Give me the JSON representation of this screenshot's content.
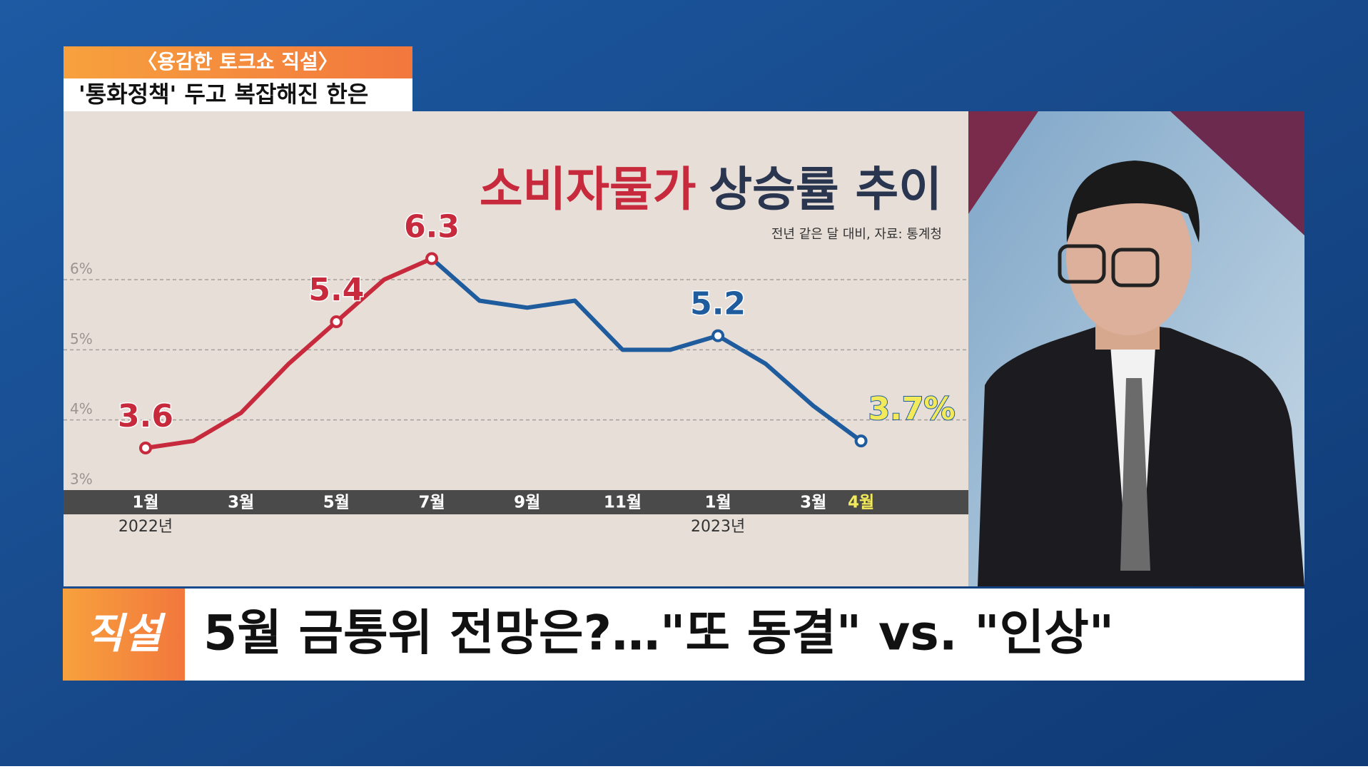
{
  "show": {
    "tag": "〈용감한 토크쇼 직설〉",
    "headline": "'통화정책' 두고 복잡해진 한은",
    "logo": "직설",
    "caption": "5월 금통위 전망은?…\"또 동결\" vs. \"인상\""
  },
  "chart_data": {
    "type": "line",
    "title": "소비자물가",
    "title_rest": "상승률 추이",
    "subtitle": "전년 같은 달 대비, 자료: 통계청",
    "categories": [
      "1월",
      null,
      "3월",
      null,
      "5월",
      null,
      "7월",
      null,
      "9월",
      null,
      "11월",
      null,
      "1월",
      null,
      "3월",
      "4월"
    ],
    "year_labels": [
      "2022년",
      null,
      null,
      null,
      null,
      null,
      null,
      null,
      null,
      null,
      null,
      null,
      "2023년",
      null,
      null,
      null
    ],
    "series": [
      {
        "color": "#c62a3c",
        "values": [
          3.6,
          3.7,
          4.1,
          4.8,
          5.4,
          6.0,
          6.3,
          null,
          null,
          null,
          null,
          null,
          null,
          null,
          null,
          null
        ],
        "value_labels": [
          "3.6",
          null,
          null,
          null,
          "5.4",
          null,
          "6.3",
          null,
          null,
          null,
          null,
          null,
          null,
          null,
          null,
          null
        ]
      },
      {
        "color": "#1f5c9e",
        "values": [
          null,
          null,
          null,
          null,
          null,
          null,
          6.3,
          5.7,
          5.6,
          5.7,
          5.0,
          5.0,
          5.2,
          4.8,
          4.2,
          3.7
        ],
        "value_labels": [
          null,
          null,
          null,
          null,
          null,
          null,
          null,
          null,
          null,
          null,
          null,
          null,
          "5.2",
          null,
          null,
          "3.7%"
        ]
      }
    ],
    "highlight_color": "#f2ea5a",
    "ylim": [
      3,
      8.4
    ],
    "yticks": [
      {
        "value": 3,
        "label": "3%"
      },
      {
        "value": 4,
        "label": "4%"
      },
      {
        "value": 5,
        "label": "5%"
      },
      {
        "value": 6,
        "label": "6%"
      }
    ],
    "grid": true
  }
}
